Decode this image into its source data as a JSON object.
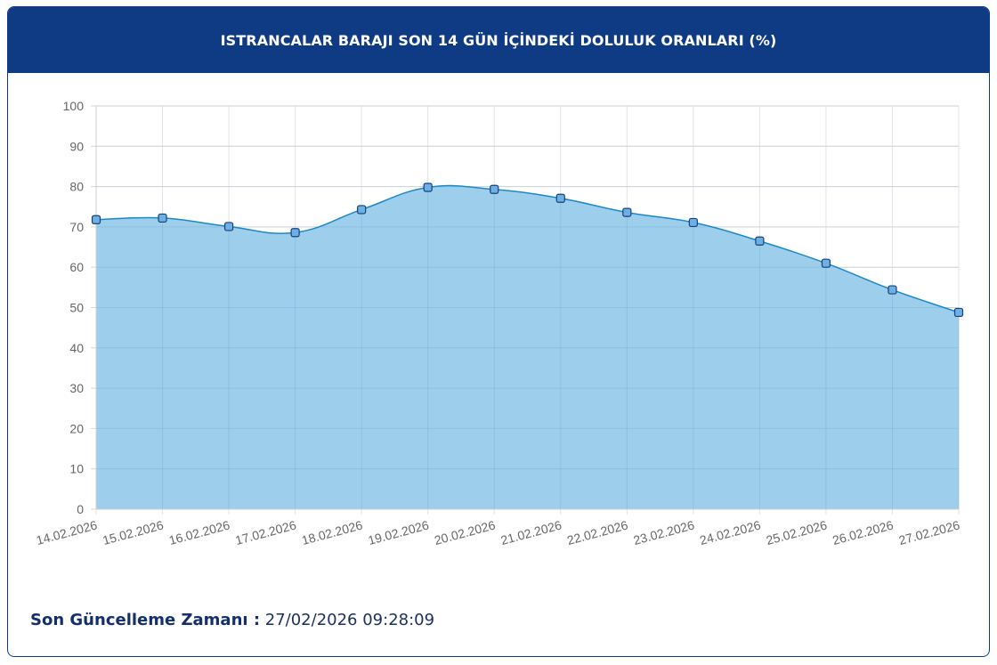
{
  "header": {
    "title": "ISTRANCALAR BARAJI SON 14 GÜN İÇİNDEKİ DOLULUK ORANLARI (%)"
  },
  "footer": {
    "label": "Son Güncelleme Zamanı :",
    "value": "27/02/2026 09:28:09"
  },
  "colors": {
    "header_bg": "#0f3a84",
    "area_fill": "#9dcfec",
    "line": "#1e88c7",
    "marker_fill": "#6cb0e4",
    "marker_stroke": "#1a3f7a"
  },
  "chart_data": {
    "type": "area",
    "title": "ISTRANCALAR BARAJI SON 14 GÜN İÇİNDEKİ DOLULUK ORANLARI (%)",
    "categories": [
      "14.02.2026",
      "15.02.2026",
      "16.02.2026",
      "17.02.2026",
      "18.02.2026",
      "19.02.2026",
      "20.02.2026",
      "21.02.2026",
      "22.02.2026",
      "23.02.2026",
      "24.02.2026",
      "25.02.2026",
      "26.02.2026",
      "27.02.2026"
    ],
    "values": [
      71.8,
      72.2,
      70.1,
      68.6,
      74.3,
      79.8,
      79.3,
      77.1,
      73.6,
      71.1,
      66.5,
      61.0,
      54.4,
      48.8
    ],
    "ylim": [
      0,
      100
    ],
    "yticks": [
      0,
      10,
      20,
      30,
      40,
      50,
      60,
      70,
      80,
      90,
      100
    ],
    "grid": true,
    "legend": "none"
  }
}
